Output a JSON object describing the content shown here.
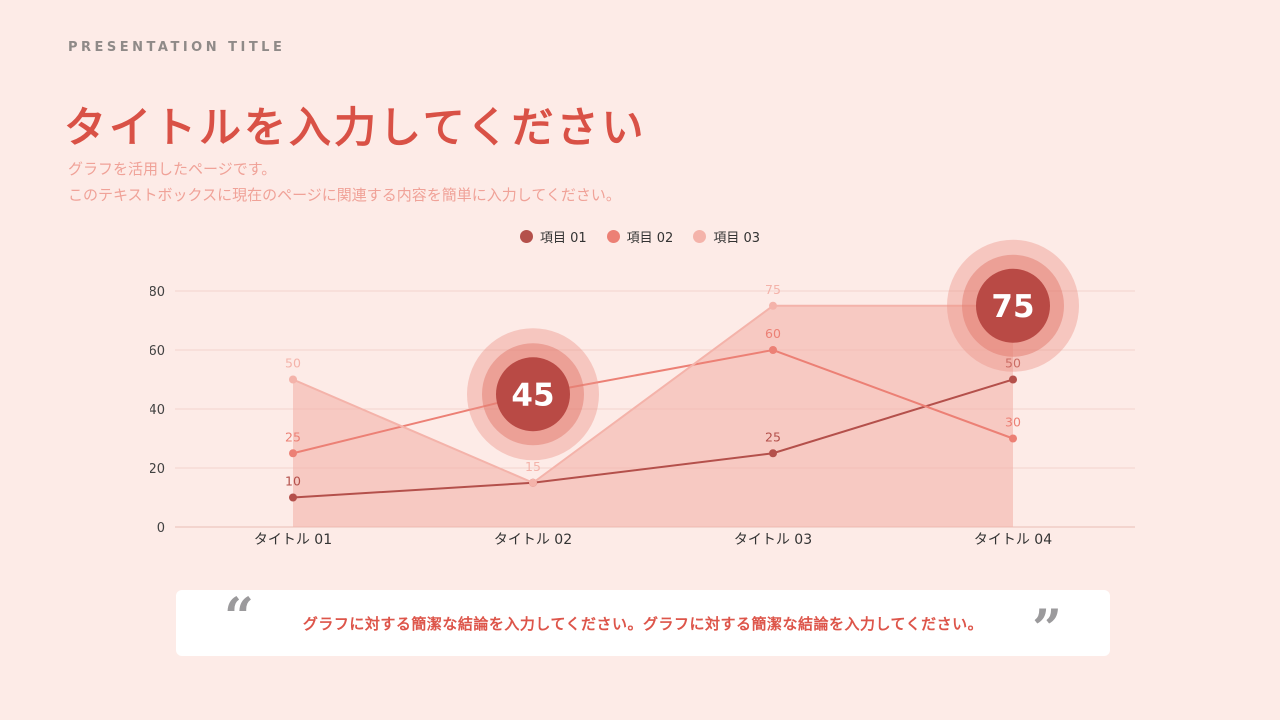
{
  "page": {
    "eyebrow": "PRESENTATION TITLE",
    "title": "タイトルを入力してください",
    "subtitle_line1": "グラフを活用したページです。",
    "subtitle_line2": "このテキストボックスに現在のページに関連する内容を簡単に入力してください。",
    "quote": "グラフに対する簡潔な結論を入力してください。グラフに対する簡潔な結論を入力してください。",
    "colors": {
      "background": "#fdebe7",
      "title": "#d95146",
      "subtitle": "#f0a298",
      "quote_text": "#dd554a",
      "quote_marks": "#9b9a9c",
      "gridline": "#f2d3cc"
    }
  },
  "chart_data": {
    "type": "line-area",
    "title": "",
    "xlabel": "",
    "ylabel": "",
    "categories": [
      "タイトル 01",
      "タイトル 02",
      "タイトル 03",
      "タイトル 04"
    ],
    "series": [
      {
        "name": "項目 01",
        "color": "#b4504b",
        "values": [
          10,
          15,
          25,
          50
        ],
        "labels": [
          10,
          null,
          25,
          50
        ],
        "area": false
      },
      {
        "name": "項目 02",
        "color": "#ec8075",
        "values": [
          25,
          45,
          60,
          30
        ],
        "labels": [
          25,
          null,
          60,
          30
        ],
        "area": false
      },
      {
        "name": "項目 03",
        "color": "#f4b3aa",
        "values": [
          50,
          15,
          75,
          75
        ],
        "labels": [
          50,
          15,
          75,
          null
        ],
        "area": true
      }
    ],
    "highlights": [
      {
        "category_index": 1,
        "value": 45,
        "label": "45"
      },
      {
        "category_index": 3,
        "value": 75,
        "label": "75"
      }
    ],
    "ylim": [
      0,
      80
    ],
    "yticks": [
      0,
      20,
      40,
      60,
      80
    ],
    "grid": "horizontal",
    "legend_position": "top-center"
  }
}
